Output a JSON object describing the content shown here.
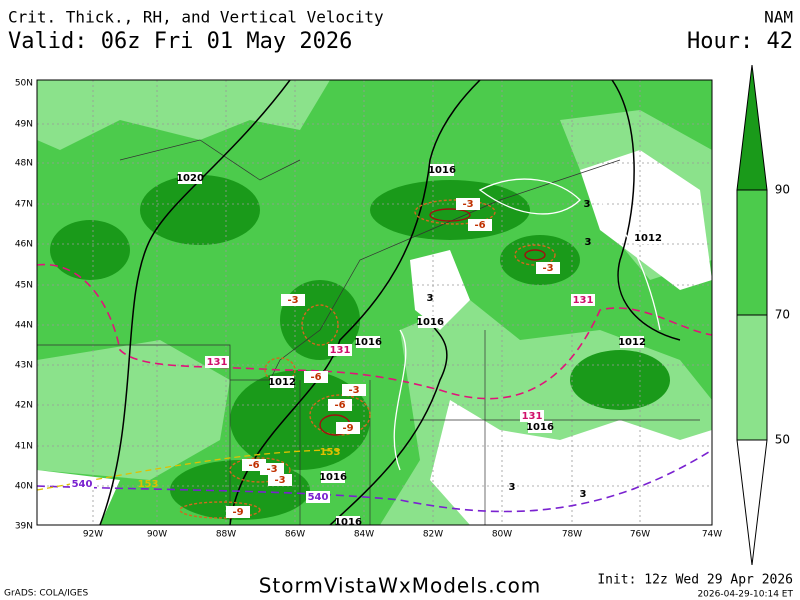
{
  "header": {
    "title": "Crit. Thick., RH, and Vertical Velocity",
    "valid": "Valid: 06z Fri 01 May 2026",
    "model": "NAM",
    "hour": "Hour: 42"
  },
  "map": {
    "lat_labels": [
      "50N",
      "49N",
      "48N",
      "47N",
      "46N",
      "45N",
      "44N",
      "43N",
      "42N",
      "41N",
      "40N",
      "39N"
    ],
    "lon_labels": [
      "92W",
      "90W",
      "88W",
      "86W",
      "84W",
      "82W",
      "80W",
      "78W",
      "76W",
      "74W"
    ],
    "contour_labels": [
      "1020",
      "1016",
      "1012",
      "1016",
      "1016",
      "1012",
      "1016",
      "1016",
      "1016",
      "1012",
      "3",
      "3",
      "3",
      "3",
      "3",
      "-3",
      "-6",
      "-3",
      "-3",
      "-6",
      "-3",
      "-6",
      "-9",
      "-3",
      "-6",
      "-3",
      "-9",
      "131",
      "131",
      "131",
      "131",
      "540",
      "540",
      "153",
      "153"
    ]
  },
  "colorbar": {
    "labels": [
      "90",
      "70",
      "50"
    ]
  },
  "footer": {
    "credit": "GrADS: COLA/IGES",
    "site": "StormVistaWxModels.com",
    "init": "Init: 12z Wed 29 Apr 2026",
    "timestamp": "2026-04-29-10:14 ET"
  }
}
